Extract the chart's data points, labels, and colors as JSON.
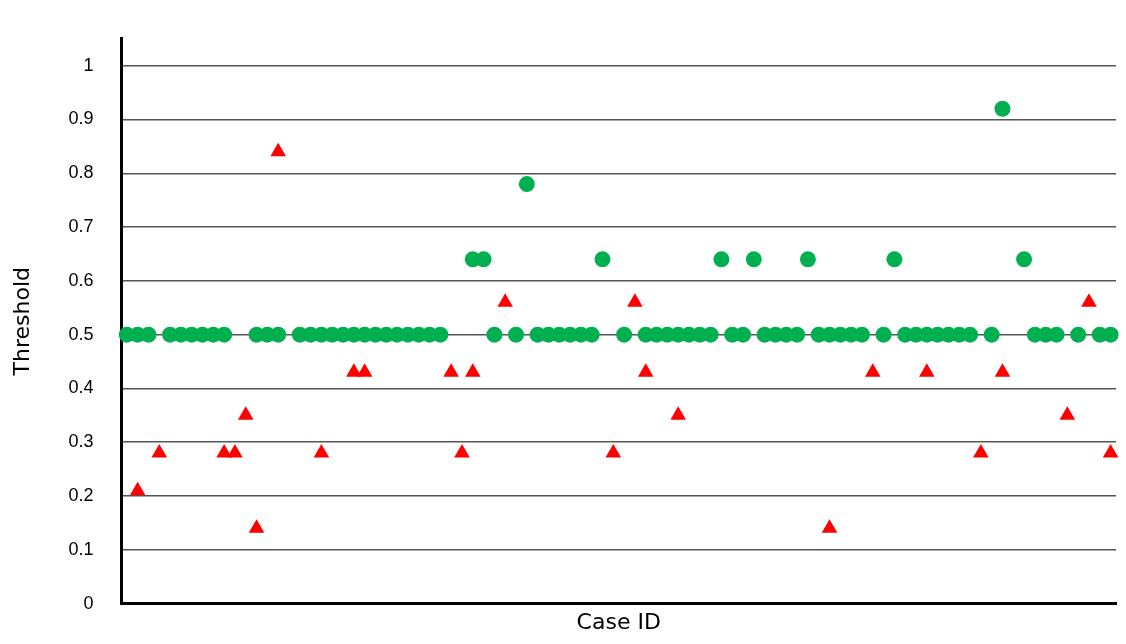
{
  "chart_data": {
    "type": "scatter",
    "xlabel": "Case ID",
    "ylabel": "Threshold",
    "categories": [
      null,
      null,
      null,
      null,
      null,
      null,
      null,
      null,
      null,
      null,
      null,
      null,
      null,
      null,
      null,
      null,
      null,
      null,
      null,
      null,
      null,
      null,
      null,
      null,
      null,
      null,
      null,
      null,
      null,
      null,
      null,
      null,
      null,
      null,
      null,
      null,
      null,
      null,
      null,
      null,
      null,
      null,
      null,
      null,
      null,
      null,
      null,
      null,
      null,
      null,
      null,
      null,
      null,
      null,
      null,
      null,
      null,
      null,
      null,
      null,
      null,
      null,
      null,
      null,
      null,
      null,
      null,
      null,
      null,
      null,
      null,
      null,
      null,
      null,
      null,
      null,
      null,
      null,
      null,
      null,
      null,
      null,
      null,
      null,
      null,
      null,
      null,
      null,
      null,
      null,
      null,
      null
    ],
    "series": [
      {
        "color": "#00b050",
        "marker": "circle",
        "values": [
          0.5,
          0.5,
          0.5,
          null,
          0.5,
          0.5,
          0.5,
          0.5,
          0.5,
          0.5,
          null,
          null,
          0.5,
          0.5,
          0.5,
          null,
          0.5,
          0.5,
          0.5,
          0.5,
          0.5,
          0.5,
          0.5,
          0.5,
          0.5,
          0.5,
          0.5,
          0.5,
          0.5,
          0.5,
          null,
          null,
          0.64,
          0.64,
          0.5,
          null,
          0.5,
          0.78,
          0.5,
          0.5,
          0.5,
          0.5,
          0.5,
          0.5,
          0.64,
          null,
          0.5,
          null,
          0.5,
          0.5,
          0.5,
          0.5,
          0.5,
          0.5,
          0.5,
          0.64,
          0.5,
          0.5,
          0.64,
          0.5,
          0.5,
          0.5,
          0.5,
          0.64,
          0.5,
          0.5,
          0.5,
          0.5,
          0.5,
          null,
          0.5,
          0.64,
          0.5,
          0.5,
          0.5,
          0.5,
          0.5,
          0.5,
          0.5,
          null,
          0.5,
          0.92,
          null,
          0.64,
          0.5,
          0.5,
          0.5,
          null,
          0.5,
          null,
          0.5,
          0.5
        ]
      },
      {
        "color": "#ff0000",
        "marker": "triangle",
        "values": [
          null,
          0.21,
          null,
          0.28,
          null,
          null,
          null,
          null,
          null,
          0.28,
          0.28,
          0.35,
          0.14,
          null,
          0.84,
          null,
          null,
          null,
          0.28,
          null,
          null,
          0.43,
          0.43,
          null,
          null,
          null,
          null,
          null,
          null,
          null,
          0.43,
          0.28,
          0.43,
          null,
          null,
          0.56,
          null,
          null,
          null,
          null,
          null,
          null,
          null,
          null,
          null,
          0.28,
          null,
          0.56,
          0.43,
          null,
          null,
          0.35,
          null,
          null,
          null,
          null,
          null,
          null,
          null,
          null,
          null,
          null,
          null,
          null,
          null,
          0.14,
          null,
          null,
          null,
          0.43,
          null,
          null,
          null,
          null,
          0.43,
          null,
          null,
          null,
          null,
          0.28,
          null,
          0.43,
          null,
          null,
          null,
          null,
          null,
          0.35,
          null,
          0.56,
          null,
          0.28
        ]
      }
    ],
    "ylim": [
      0,
      1.05
    ],
    "yticks": [
      0,
      0.1,
      0.2,
      0.3,
      0.4,
      0.5,
      0.6,
      0.7,
      0.8,
      0.9,
      1
    ],
    "grid": "y",
    "legend": false,
    "tick_labels": "y"
  }
}
